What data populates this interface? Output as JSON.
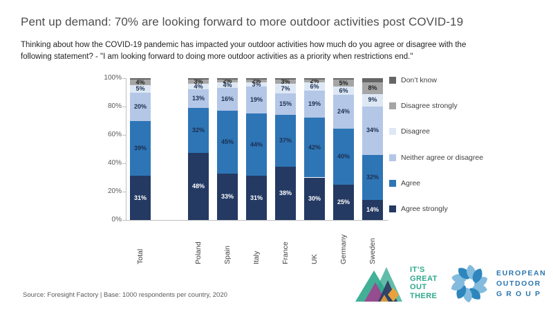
{
  "title": "Pent up demand: 70% are looking forward to more outdoor activities post COVID-19",
  "subtitle_line1": "Thinking about how the COVID-19 pandemic has impacted your outdoor activities how much do you agree or disagree with the",
  "subtitle_line2": "following statement? - \"I am looking forward to doing more outdoor activities as a priority when restrictions end.\"",
  "source": "Source: Foresight Factory | Base:  1000 respondents per country, 2020",
  "chart_data": {
    "type": "bar",
    "stacked": true,
    "title": "Pent up demand: 70% are looking forward to more outdoor activities post COVID-19",
    "xlabel": "",
    "ylabel": "",
    "ylim": [
      0,
      100
    ],
    "grid": false,
    "legend_position": "right",
    "y_ticks": [
      "100%",
      "80%",
      "60%",
      "40%",
      "20%",
      "0%"
    ],
    "categories": [
      "Total",
      "Poland",
      "Spain",
      "Italy",
      "France",
      "UK",
      "Germany",
      "Sweden"
    ],
    "series": [
      {
        "name": "Agree strongly",
        "color": "#243A63",
        "label_color": "#ffffff",
        "show_labels": true,
        "values": [
          31,
          48,
          33,
          31,
          38,
          30,
          25,
          14
        ]
      },
      {
        "name": "Agree",
        "color": "#2E75B6",
        "label_color": "#1b2f4e",
        "show_labels": true,
        "values": [
          39,
          32,
          45,
          44,
          37,
          42,
          40,
          32
        ]
      },
      {
        "name": "Neither agree or disagree",
        "color": "#B4C7E7",
        "label_color": "#1b2f4e",
        "show_labels": true,
        "values": [
          20,
          13,
          16,
          19,
          15,
          19,
          24,
          34
        ]
      },
      {
        "name": "Disagree",
        "color": "#DEE8F5",
        "label_color": "#1b2f4e",
        "show_labels": true,
        "values": [
          5,
          4,
          4,
          3,
          7,
          6,
          6,
          9
        ]
      },
      {
        "name": "Disagree strongly",
        "color": "#A5A5A5",
        "label_color": "#1f1f1f",
        "show_labels": true,
        "values": [
          4,
          3,
          2,
          2,
          3,
          2,
          5,
          8
        ]
      },
      {
        "name": "Don’t know",
        "color": "#666666",
        "label_color": "#1f1f1f",
        "show_labels": false,
        "values": [
          1,
          1,
          1,
          1,
          1,
          1,
          1,
          3
        ]
      }
    ]
  },
  "logos": {
    "igot": {
      "lines": [
        "IT’S",
        "GREAT",
        "OUT",
        "THERE"
      ],
      "text_color": "#2fa88c"
    },
    "eog": {
      "lines": [
        "EUROPEAN",
        "OUTDOOR",
        "G R O U P"
      ],
      "text_color": "#2b76ae"
    }
  }
}
